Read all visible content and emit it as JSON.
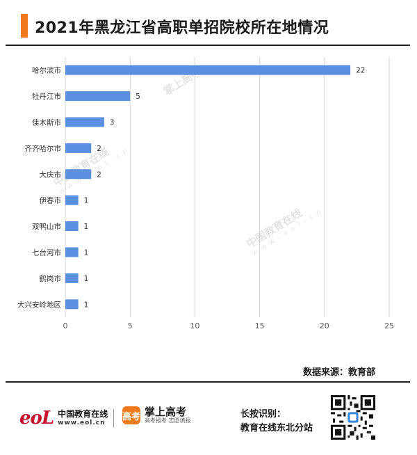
{
  "header": {
    "title": "2021年黑龙江省高职单招院校所在地情况",
    "accent_color": "#f07b1d"
  },
  "chart_data": {
    "type": "bar",
    "orientation": "horizontal",
    "categories": [
      "哈尔滨市",
      "牡丹江市",
      "佳木斯市",
      "齐齐哈尔市",
      "大庆市",
      "伊春市",
      "双鸭山市",
      "七台河市",
      "鹤岗市",
      "大兴安岭地区"
    ],
    "values": [
      22,
      5,
      3,
      2,
      2,
      1,
      1,
      1,
      1,
      1
    ],
    "x_ticks": [
      0,
      5,
      10,
      15,
      20,
      25
    ],
    "xlim": [
      0,
      25
    ],
    "grid": "vertical",
    "bar_color": "#5b8fe0",
    "data_labels": true
  },
  "source": {
    "text": "数据来源：教育部"
  },
  "watermarks": [
    {
      "brand": "中国教育在线",
      "url": "w w w . e o l . c n"
    },
    {
      "brand": "中国教育在线",
      "url": "w w w . e o l . c n"
    },
    {
      "brand": "掌上高考",
      "url": ""
    }
  ],
  "footer": {
    "logo_mark": "eoL",
    "org_name": "中国教育在线",
    "org_url": "www.eol.cn",
    "app_badge": "高考",
    "app_name": "掌上高考",
    "app_slogan": "高考报考 志愿填报",
    "scan_line1": "长按识别：",
    "scan_line2": "教育在线东北分站",
    "qr_icon": "qr-code-icon"
  }
}
